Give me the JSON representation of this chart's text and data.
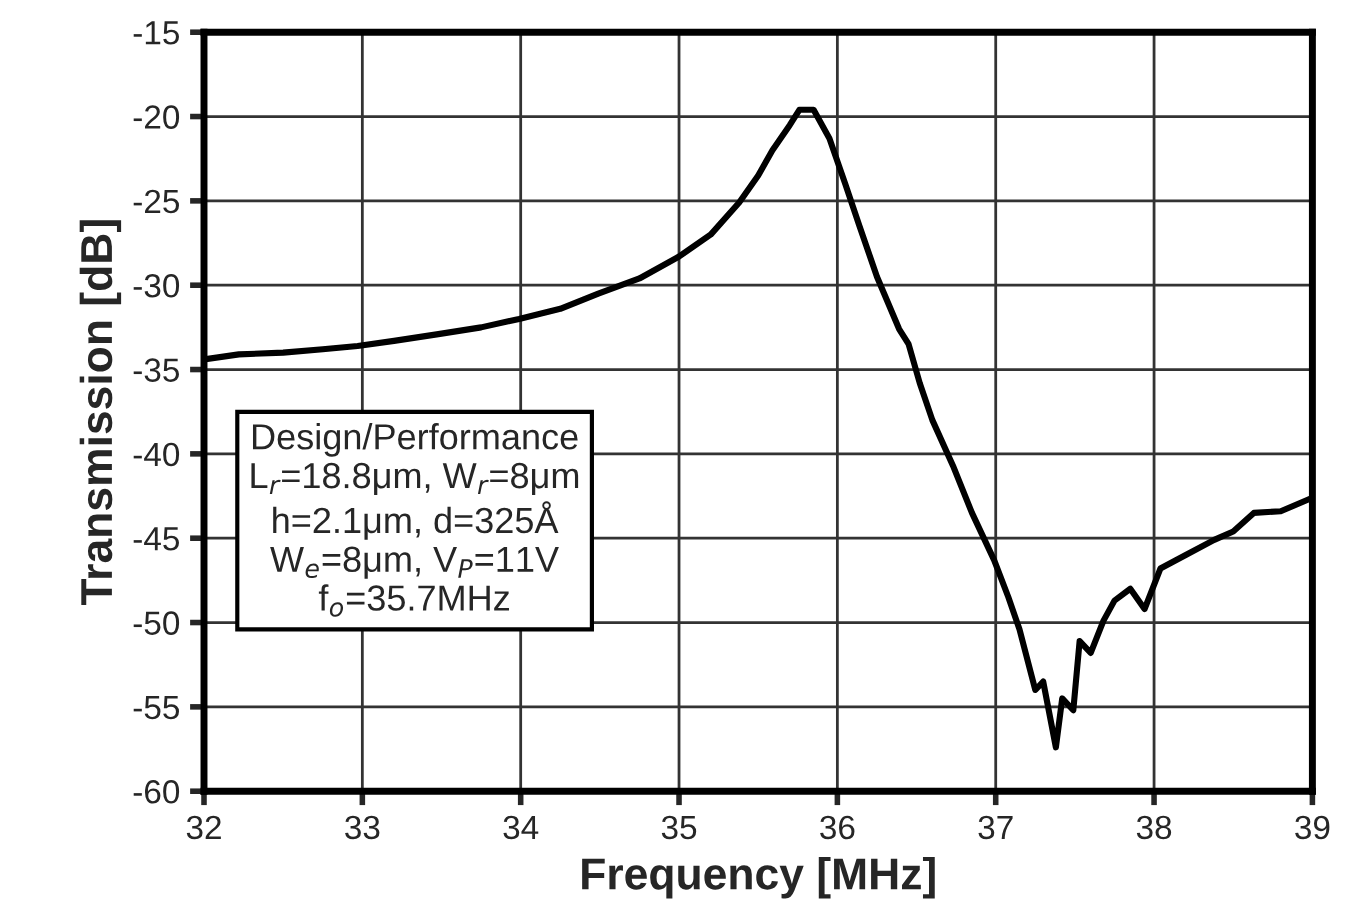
{
  "chart_data": {
    "type": "line",
    "xlabel": "Frequency [MHz]",
    "ylabel": "Transmission [dB]",
    "xlim": [
      32,
      39
    ],
    "xticks": [
      32,
      33,
      34,
      35,
      36,
      37,
      38,
      39
    ],
    "ylim": [
      -60,
      -15
    ],
    "yticks": [
      -60,
      -55,
      -50,
      -45,
      -40,
      -35,
      -30,
      -25,
      -20,
      -15
    ],
    "grid": true,
    "marker": "none",
    "line_style": "solid",
    "annotations": [
      "Design/Performance",
      "L$_{r}$=18.8μm, W$_{r}$=8μm",
      "h=2.1μm, d=325Å",
      "W$_{e}$=8μm, V$_{P}$=11V",
      "f$_{o}$=35.7MHz"
    ],
    "series": [
      {
        "color": "#000000",
        "x": [
          32.0,
          32.22,
          32.5,
          32.75,
          32.97,
          33.2,
          33.48,
          33.75,
          33.99,
          34.25,
          34.49,
          34.75,
          35.0,
          35.2,
          35.38,
          35.5,
          35.59,
          35.7,
          35.76,
          35.85,
          35.95,
          36.05,
          36.14,
          36.25,
          36.39,
          36.45,
          36.52,
          36.6,
          36.73,
          36.85,
          36.99,
          37.08,
          37.15,
          37.25,
          37.3,
          37.38,
          37.42,
          37.49,
          37.53,
          37.6,
          37.68,
          37.75,
          37.85,
          37.94,
          38.04,
          38.2,
          38.38,
          38.5,
          38.63,
          38.8,
          39.0
        ],
        "values": [
          -34.4,
          -34.1,
          -34.0,
          -33.8,
          -33.6,
          -33.3,
          -32.9,
          -32.5,
          -32.0,
          -31.4,
          -30.5,
          -29.6,
          -28.3,
          -27.0,
          -25.1,
          -23.5,
          -22.0,
          -20.5,
          -19.6,
          -19.6,
          -21.3,
          -24.0,
          -26.5,
          -29.5,
          -32.6,
          -33.5,
          -35.8,
          -38.0,
          -40.7,
          -43.5,
          -46.3,
          -48.5,
          -50.4,
          -54.0,
          -53.5,
          -57.4,
          -54.5,
          -55.2,
          -51.1,
          -51.8,
          -49.9,
          -48.7,
          -48.0,
          -49.2,
          -46.8,
          -46.0,
          -45.1,
          -44.6,
          -43.5,
          -43.4,
          -42.6
        ]
      }
    ]
  }
}
